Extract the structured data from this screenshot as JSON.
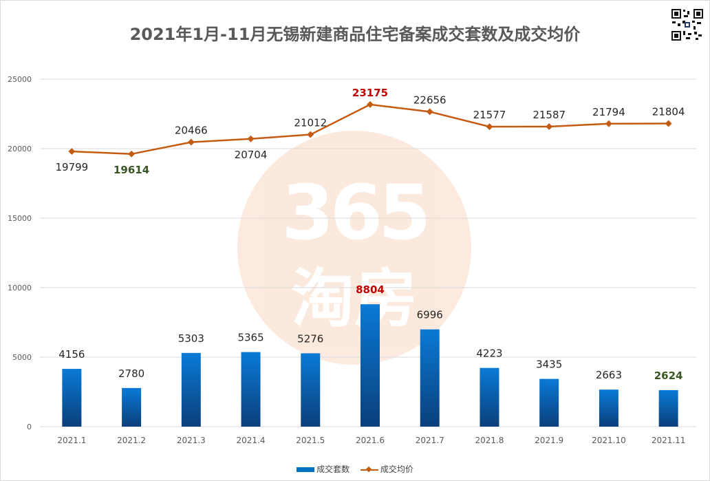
{
  "chart_data": {
    "type": "bar",
    "title": "2021年1月-11月无锡新建商品住宅备案成交套数及成交均价",
    "categories": [
      "2021.1",
      "2021.2",
      "2021.3",
      "2021.4",
      "2021.5",
      "2021.6",
      "2021.7",
      "2021.8",
      "2021.9",
      "2021.10",
      "2021.11"
    ],
    "series": [
      {
        "name": "成交套数",
        "type": "bar",
        "values": [
          4156,
          2780,
          5303,
          5365,
          5276,
          8804,
          6996,
          4223,
          3435,
          2663,
          2624
        ],
        "color": "#0070c0",
        "highlight": {
          "max_index": 5,
          "max_color": "#c00000",
          "min_index": 10,
          "min_color": "#375623"
        }
      },
      {
        "name": "成交均价",
        "type": "line",
        "values": [
          19799,
          19614,
          20466,
          20704,
          21012,
          23175,
          22656,
          21577,
          21587,
          21794,
          21804
        ],
        "color": "#c55a11",
        "highlight": {
          "max_index": 5,
          "max_color": "#c00000",
          "min_index": 1,
          "min_color": "#375623"
        }
      }
    ],
    "yticks": [
      0,
      5000,
      10000,
      15000,
      20000,
      25000
    ],
    "ylim": [
      0,
      25000
    ],
    "grid": true,
    "legend": "bottom"
  },
  "watermark": {
    "line1": "365",
    "line2": "淘房"
  }
}
